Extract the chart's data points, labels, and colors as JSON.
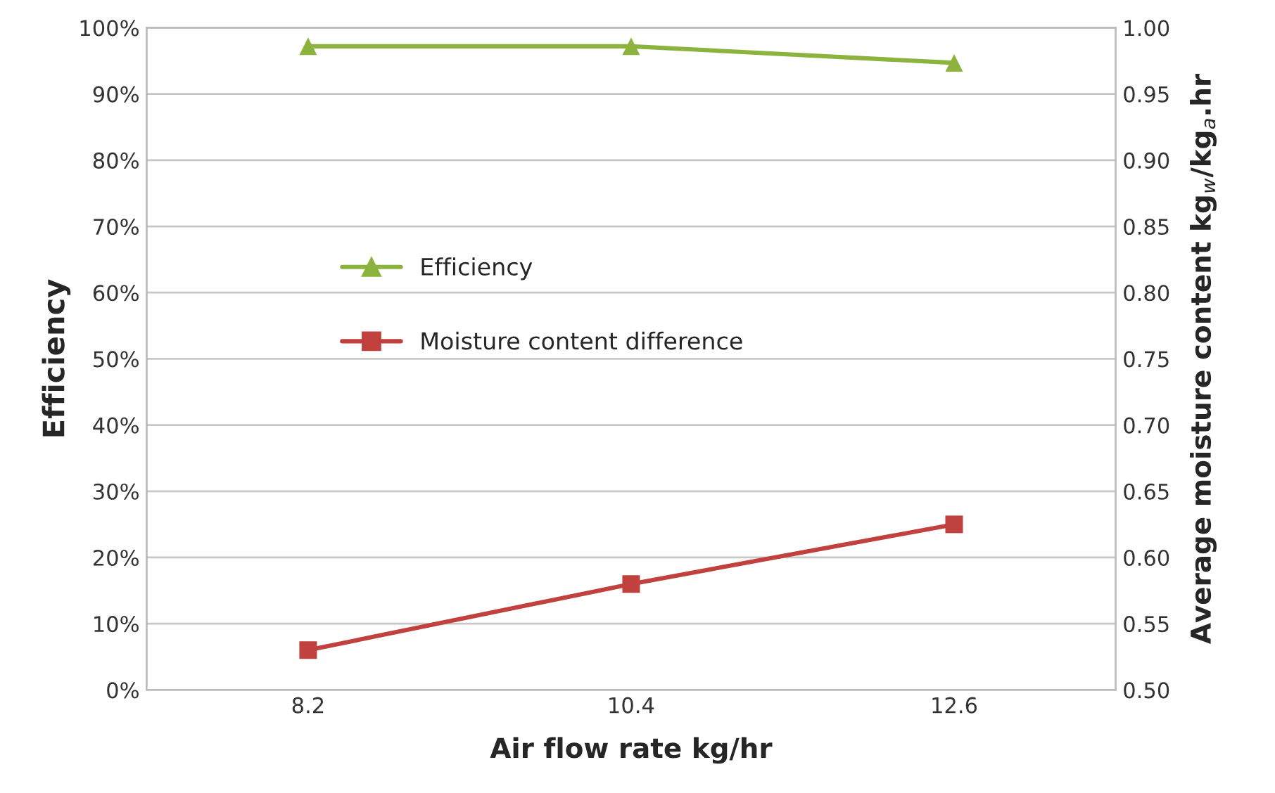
{
  "chart_data": {
    "type": "line",
    "xlabel": "Air flow rate kg/hr",
    "ylabel": "Efficiency",
    "y2label": "Average moisture content kg$_{w}$/kg$_{a}$.hr",
    "x": [
      8.2,
      10.4,
      12.6
    ],
    "xlim": [
      7.1,
      13.7
    ],
    "xticks": [
      8.2,
      10.4,
      12.6
    ],
    "series": [
      {
        "name": "Efficiency",
        "color": "#8db33f",
        "values": [
          97.2,
          97.2,
          94.7
        ],
        "marker": "triangle"
      },
      {
        "name": "Moisture content difference",
        "color": "#c0413d",
        "values": [
          0.53,
          0.58,
          0.625
        ],
        "marker": "square",
        "axis": "y2"
      }
    ],
    "ylim": [
      0,
      100
    ],
    "yticks": [
      {
        "value": 0,
        "label": "0%"
      },
      {
        "value": 10,
        "label": "10%"
      },
      {
        "value": 20,
        "label": "20%"
      },
      {
        "value": 30,
        "label": "30%"
      },
      {
        "value": 40,
        "label": "40%"
      },
      {
        "value": 50,
        "label": "50%"
      },
      {
        "value": 60,
        "label": "60%"
      },
      {
        "value": 70,
        "label": "70%"
      },
      {
        "value": 80,
        "label": "80%"
      },
      {
        "value": 90,
        "label": "90%"
      },
      {
        "value": 100,
        "label": "100%"
      }
    ],
    "y2lim": [
      0.5,
      1.0
    ],
    "y2ticks": [
      {
        "value": 0.5,
        "label": "0.50"
      },
      {
        "value": 0.55,
        "label": "0.55"
      },
      {
        "value": 0.6,
        "label": "0.60"
      },
      {
        "value": 0.65,
        "label": "0.65"
      },
      {
        "value": 0.7,
        "label": "0.70"
      },
      {
        "value": 0.75,
        "label": "0.75"
      },
      {
        "value": 0.8,
        "label": "0.80"
      },
      {
        "value": 0.85,
        "label": "0.85"
      },
      {
        "value": 0.9,
        "label": "0.90"
      },
      {
        "value": 0.95,
        "label": "0.95"
      },
      {
        "value": 1.0,
        "label": "1.00"
      }
    ],
    "grid": "y",
    "legend": "center left",
    "line_style": "solid"
  }
}
